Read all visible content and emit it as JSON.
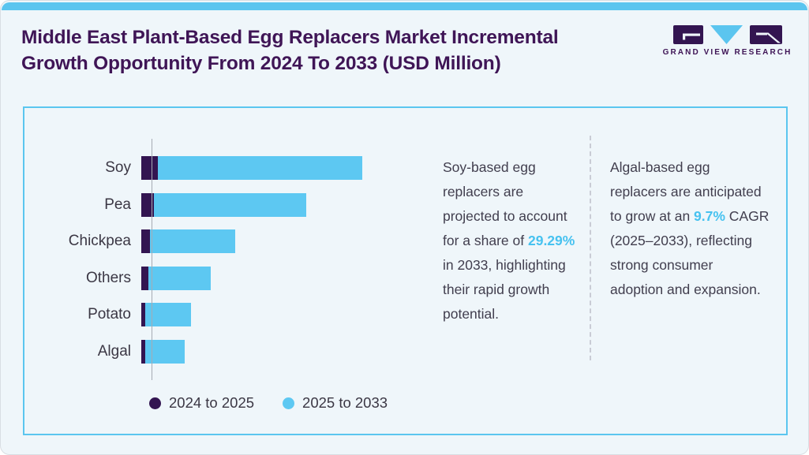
{
  "header": {
    "title_line1": "Middle East Plant-Based Egg Replacers Market Incremental",
    "title_line2": "Growth Opportunity From 2024 To 2033 (USD Million)",
    "brand_name": "GRAND VIEW RESEARCH"
  },
  "chart_data": {
    "type": "bar",
    "orientation": "horizontal",
    "stacked": true,
    "title": "Middle East Plant-Based Egg Replacers Market Incremental Growth Opportunity From 2024 To 2033 (USD Million)",
    "categories": [
      "Soy",
      "Pea",
      "Chickpea",
      "Others",
      "Potato",
      "Algal"
    ],
    "series": [
      {
        "name": "2024 to 2025",
        "color": "#331551",
        "values": [
          21,
          16,
          11,
          9,
          5,
          5
        ]
      },
      {
        "name": "2025 to 2033",
        "color": "#5dc8f2",
        "values": [
          259,
          193,
          108,
          79,
          58,
          50
        ]
      }
    ],
    "value_axis": "unlabeled — bar lengths are relative units estimated from the figure",
    "legend_position": "bottom",
    "grid": false
  },
  "notes": [
    {
      "prefix": "Soy-based egg replacers are projected to account for a share of ",
      "highlight": "29.29%",
      "suffix": " in 2033, highlighting their rapid growth potential."
    },
    {
      "prefix": "Algal-based egg replacers are anticipated to grow at an ",
      "highlight": "9.7%",
      "suffix": " CAGR (2025–2033), reflecting strong consumer adoption and expansion."
    }
  ],
  "colors": {
    "accent_blue": "#5dc8f2",
    "dark_purple": "#331551",
    "title_purple": "#3f1556",
    "body_text": "#413e4e",
    "highlight_blue": "#47c2f0",
    "card_border": "#5bc6ef",
    "top_strip": "#5bc5ef",
    "axis_gray": "#a6abb4",
    "page_background": "#eff6fa"
  }
}
